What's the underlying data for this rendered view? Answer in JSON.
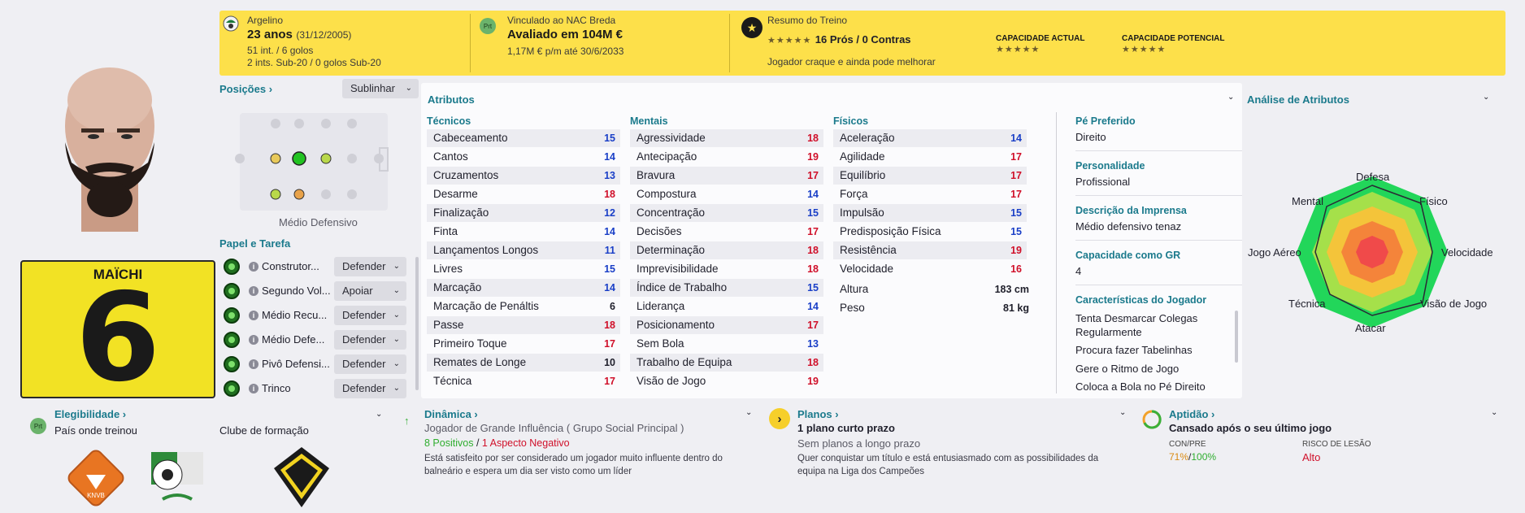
{
  "header": {
    "nation": "Argelino",
    "age": "23 anos",
    "dob": "(31/12/2005)",
    "caps": "51 int. / 6 golos",
    "u20caps": "2 ints. Sub-20 / 0 golos Sub-20",
    "club_line": "Vinculado ao NAC Breda",
    "value": "Avaliado em 104M €",
    "wage": "1,17M € p/m até 30/6/2033",
    "training_title": "Resumo do Treino",
    "training_stars": "★★★★★",
    "pros_cons": "16 Prós / 0 Contras",
    "training_desc": "Jogador craque e ainda pode melhorar",
    "ca_label": "CAPACIDADE ACTUAL",
    "pa_label": "CAPACIDADE POTENCIAL",
    "ca_stars": "★★★★★",
    "pa_stars": "★★★★★",
    "prt_badge": "Prt"
  },
  "player": {
    "name": "MAÏCHI",
    "number": "6"
  },
  "positions": {
    "title": "Posições",
    "highlight": "Sublinhar",
    "role_name": "Médio Defensivo"
  },
  "roles": {
    "title": "Papel e Tarefa",
    "items": [
      {
        "name": "Construtor...",
        "duty": "Defender"
      },
      {
        "name": "Segundo Vol...",
        "duty": "Apoiar"
      },
      {
        "name": "Médio Recu...",
        "duty": "Defender"
      },
      {
        "name": "Médio Defe...",
        "duty": "Defender"
      },
      {
        "name": "Pivô Defensi...",
        "duty": "Defender"
      },
      {
        "name": "Trinco",
        "duty": "Defender"
      }
    ]
  },
  "eligibility": {
    "title": "Elegibilidade",
    "badge": "Prt",
    "text": "País onde treinou",
    "club_title": "Clube de formação"
  },
  "attributes": {
    "title": "Atributos",
    "technical_title": "Técnicos",
    "mental_title": "Mentais",
    "physical_title": "Físicos",
    "technical": [
      {
        "n": "Cabeceamento",
        "v": "15",
        "c": "blue"
      },
      {
        "n": "Cantos",
        "v": "14",
        "c": "blue"
      },
      {
        "n": "Cruzamentos",
        "v": "13",
        "c": "blue"
      },
      {
        "n": "Desarme",
        "v": "18",
        "c": "red"
      },
      {
        "n": "Finalização",
        "v": "12",
        "c": "blue"
      },
      {
        "n": "Finta",
        "v": "14",
        "c": "blue"
      },
      {
        "n": "Lançamentos Longos",
        "v": "11",
        "c": "blue"
      },
      {
        "n": "Livres",
        "v": "15",
        "c": "blue"
      },
      {
        "n": "Marcação",
        "v": "14",
        "c": "blue"
      },
      {
        "n": "Marcação de Penáltis",
        "v": "6",
        "c": "black"
      },
      {
        "n": "Passe",
        "v": "18",
        "c": "red"
      },
      {
        "n": "Primeiro Toque",
        "v": "17",
        "c": "red"
      },
      {
        "n": "Remates de Longe",
        "v": "10",
        "c": "black"
      },
      {
        "n": "Técnica",
        "v": "17",
        "c": "red"
      }
    ],
    "mental": [
      {
        "n": "Agressividade",
        "v": "18",
        "c": "red"
      },
      {
        "n": "Antecipação",
        "v": "19",
        "c": "red"
      },
      {
        "n": "Bravura",
        "v": "17",
        "c": "red"
      },
      {
        "n": "Compostura",
        "v": "14",
        "c": "blue"
      },
      {
        "n": "Concentração",
        "v": "15",
        "c": "blue"
      },
      {
        "n": "Decisões",
        "v": "17",
        "c": "red"
      },
      {
        "n": "Determinação",
        "v": "18",
        "c": "red"
      },
      {
        "n": "Imprevisibilidade",
        "v": "18",
        "c": "red"
      },
      {
        "n": "Índice de Trabalho",
        "v": "15",
        "c": "blue"
      },
      {
        "n": "Liderança",
        "v": "14",
        "c": "blue"
      },
      {
        "n": "Posicionamento",
        "v": "17",
        "c": "red"
      },
      {
        "n": "Sem Bola",
        "v": "13",
        "c": "blue"
      },
      {
        "n": "Trabalho de Equipa",
        "v": "18",
        "c": "red"
      },
      {
        "n": "Visão de Jogo",
        "v": "19",
        "c": "red"
      }
    ],
    "physical": [
      {
        "n": "Aceleração",
        "v": "14",
        "c": "blue"
      },
      {
        "n": "Agilidade",
        "v": "17",
        "c": "red"
      },
      {
        "n": "Equilíbrio",
        "v": "17",
        "c": "red"
      },
      {
        "n": "Força",
        "v": "17",
        "c": "red"
      },
      {
        "n": "Impulsão",
        "v": "15",
        "c": "blue"
      },
      {
        "n": "Predisposição Física",
        "v": "15",
        "c": "blue"
      },
      {
        "n": "Resistência",
        "v": "19",
        "c": "red"
      },
      {
        "n": "Velocidade",
        "v": "16",
        "c": "red"
      }
    ],
    "height_label": "Altura",
    "height": "183 cm",
    "weight_label": "Peso",
    "weight": "81 kg"
  },
  "info": {
    "foot_label": "Pé Preferido",
    "foot": "Direito",
    "personality_label": "Personalidade",
    "personality": "Profissional",
    "press_label": "Descrição da Imprensa",
    "press": "Médio defensivo tenaz",
    "gk_label": "Capacidade como GR",
    "gk": "4",
    "traits_label": "Características do Jogador",
    "traits": [
      "Tenta Desmarcar Colegas Regularmente",
      "Procura fazer Tabelinhas",
      "Gere o Ritmo de Jogo",
      "Coloca a Bola no Pé Direito"
    ]
  },
  "analysis": {
    "title": "Análise de Atributos",
    "labels": {
      "defesa": "Defesa",
      "fisico": "Físico",
      "velocidade": "Velocidade",
      "visao": "Visão de Jogo",
      "atacar": "Atacar",
      "tecnica": "Técnica",
      "aereo": "Jogo Aéreo",
      "mental": "Mental"
    }
  },
  "dynamics": {
    "title": "Dinâmica",
    "line1": "Jogador de Grande Influência",
    "group": "( Grupo Social Principal )",
    "positives": "8 Positivos",
    "sep": "/",
    "negative": "1 Aspecto Negativo",
    "desc": "Está satisfeito por ser considerado um jogador muito influente dentro do balneário e espera um dia ser visto como um líder"
  },
  "plans": {
    "title": "Planos",
    "short": "1 plano curto prazo",
    "long": "Sem planos a longo prazo",
    "desc": "Quer conquistar um título e está entusiasmado com as possibilidades da equipa na Liga dos Campeões"
  },
  "fitness": {
    "title": "Aptidão",
    "status": "Cansado após o seu último jogo",
    "conpre_label": "CON/PRE",
    "con": "71%",
    "sep": "/",
    "pre": "100%",
    "injury_label": "RISCO DE LESÃO",
    "injury": "Alto"
  },
  "colors": {
    "accent": "#1b7a8c",
    "high": "#d0102a",
    "mid": "#1a3fc7",
    "header": "#fde04a"
  }
}
